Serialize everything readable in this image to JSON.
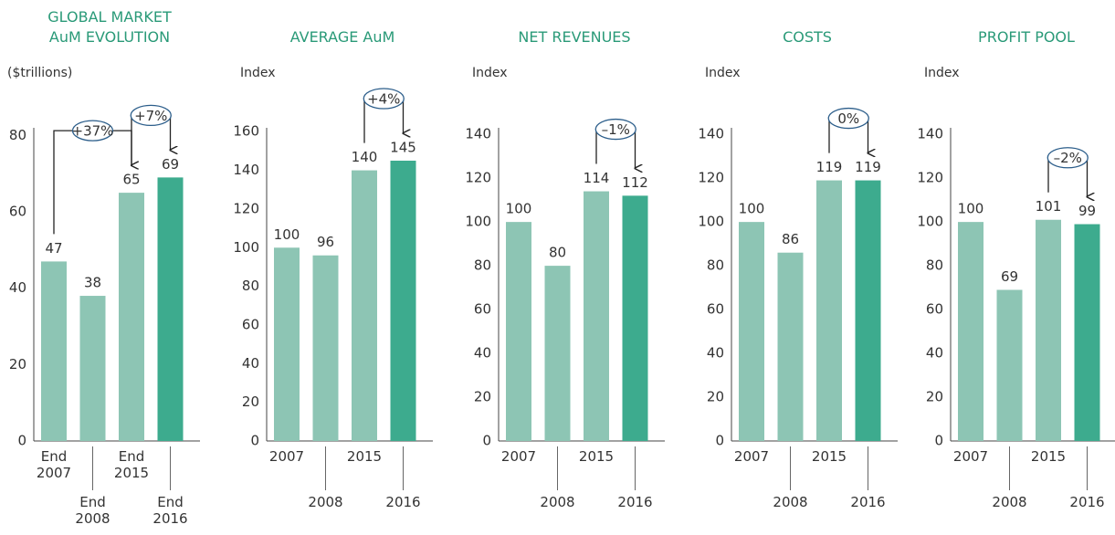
{
  "chart_data": [
    {
      "type": "bar",
      "title": "GLOBAL MARKET AuM EVOLUTION",
      "y_label": "($trillions)",
      "categories": [
        "End 2007",
        "End 2008",
        "End 2015",
        "End 2016"
      ],
      "values": [
        47,
        38,
        65,
        69
      ],
      "colors": [
        "#8dc5b4",
        "#8dc5b4",
        "#8dc5b4",
        "#3dab8e"
      ],
      "ylim": [
        0,
        82
      ],
      "yticks": [
        0,
        20,
        40,
        60,
        80
      ],
      "annotations": [
        {
          "label": "+37%",
          "from": "End 2007",
          "to": "End 2015"
        },
        {
          "label": "+7%",
          "from": "End 2015",
          "to": "End 2016"
        }
      ]
    },
    {
      "type": "bar",
      "title": "AVERAGE AuM",
      "y_label": "Index",
      "categories": [
        "2007",
        "2008",
        "2015",
        "2016"
      ],
      "values": [
        100,
        96,
        140,
        145
      ],
      "colors": [
        "#8dc5b4",
        "#8dc5b4",
        "#8dc5b4",
        "#3dab8e"
      ],
      "ylim": [
        0,
        162
      ],
      "yticks": [
        0,
        20,
        40,
        60,
        80,
        100,
        120,
        140,
        160
      ],
      "annotations": [
        {
          "label": "+4%",
          "from": "2015",
          "to": "2016"
        }
      ]
    },
    {
      "type": "bar",
      "title": "NET REVENUES",
      "y_label": "Index",
      "categories": [
        "2007",
        "2008",
        "2015",
        "2016"
      ],
      "values": [
        100,
        80,
        114,
        112
      ],
      "colors": [
        "#8dc5b4",
        "#8dc5b4",
        "#8dc5b4",
        "#3dab8e"
      ],
      "ylim": [
        0,
        143
      ],
      "yticks": [
        0,
        20,
        40,
        60,
        80,
        100,
        120,
        140
      ],
      "annotations": [
        {
          "label": "–1%",
          "from": "2015",
          "to": "2016"
        }
      ]
    },
    {
      "type": "bar",
      "title": "COSTS",
      "y_label": "Index",
      "categories": [
        "2007",
        "2008",
        "2015",
        "2016"
      ],
      "values": [
        100,
        86,
        119,
        119
      ],
      "colors": [
        "#8dc5b4",
        "#8dc5b4",
        "#8dc5b4",
        "#3dab8e"
      ],
      "ylim": [
        0,
        143
      ],
      "yticks": [
        0,
        20,
        40,
        60,
        80,
        100,
        120,
        140
      ],
      "annotations": [
        {
          "label": "0%",
          "from": "2015",
          "to": "2016"
        }
      ]
    },
    {
      "type": "bar",
      "title": "PROFIT POOL",
      "y_label": "Index",
      "categories": [
        "2007",
        "2008",
        "2015",
        "2016"
      ],
      "values": [
        100,
        69,
        101,
        99
      ],
      "colors": [
        "#8dc5b4",
        "#8dc5b4",
        "#8dc5b4",
        "#3dab8e"
      ],
      "ylim": [
        0,
        143
      ],
      "yticks": [
        0,
        20,
        40,
        60,
        80,
        100,
        120,
        140
      ],
      "annotations": [
        {
          "label": "–2%",
          "from": "2015",
          "to": "2016"
        }
      ]
    }
  ]
}
